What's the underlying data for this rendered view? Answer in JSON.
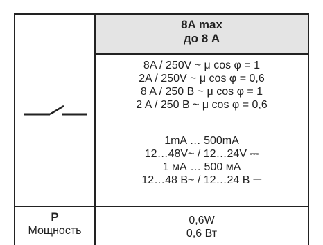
{
  "header": {
    "line1": "8A max",
    "line2": "до 8 A"
  },
  "contacts": {
    "symbol": "switch-symbol-icon",
    "ac_ratings": [
      "8A / 250V ~ μ cos φ = 1",
      "2A / 250V ~ μ cos φ = 0,6",
      "8 A / 250 В ~ μ cos φ = 1",
      "2 A / 250 В ~ μ cos φ = 0,6"
    ],
    "dc_ratings": [
      "1mA … 500mA",
      "12…48V~ / 12…24V ⎓",
      "1 мА … 500 мА",
      "12…48 В~ / 12…24 В ⎓"
    ]
  },
  "power": {
    "label_symbol": "P",
    "label_word": "Мощность",
    "values": [
      "0,6W",
      "0,6 Вт"
    ]
  }
}
